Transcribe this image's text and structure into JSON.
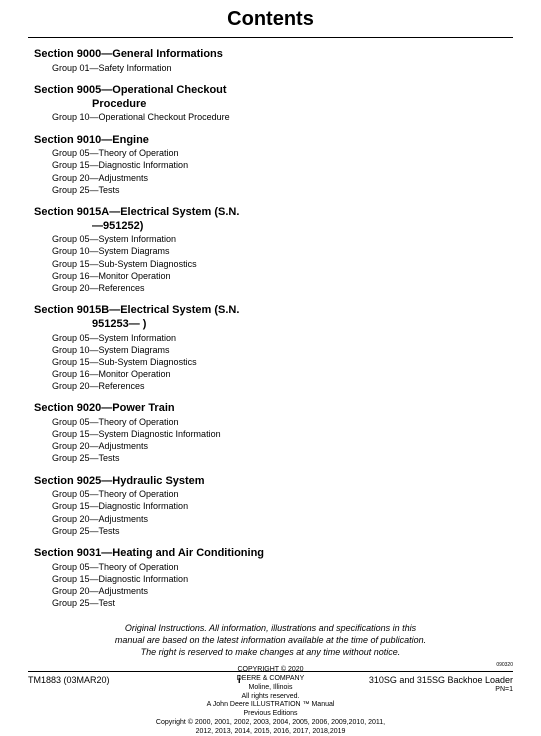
{
  "title": "Contents",
  "sections": [
    {
      "heading": "Section 9000—General Informations",
      "heading2": "",
      "groups": [
        "Group 01—Safety Information"
      ]
    },
    {
      "heading": "Section 9005—Operational Checkout",
      "heading2": "Procedure",
      "groups": [
        "Group 10—Operational Checkout Procedure"
      ]
    },
    {
      "heading": "Section 9010—Engine",
      "heading2": "",
      "groups": [
        "Group 05—Theory of Operation",
        "Group 15—Diagnostic Information",
        "Group 20—Adjustments",
        "Group 25—Tests"
      ]
    },
    {
      "heading": "Section 9015A—Electrical System (S.N.",
      "heading2": "—951252)",
      "groups": [
        "Group 05—System Information",
        "Group 10—System Diagrams",
        "Group 15—Sub-System Diagnostics",
        "Group 16—Monitor Operation",
        "Group 20—References"
      ]
    },
    {
      "heading": "Section 9015B—Electrical System (S.N.",
      "heading2": "951253— )",
      "groups": [
        "Group 05—System Information",
        "Group 10—System Diagrams",
        "Group 15—Sub-System Diagnostics",
        "Group 16—Monitor Operation",
        "Group 20—References"
      ]
    },
    {
      "heading": "Section 9020—Power Train",
      "heading2": "",
      "groups": [
        "Group 05—Theory of Operation",
        "Group 15—System Diagnostic Information",
        "Group 20—Adjustments",
        "Group 25—Tests"
      ]
    },
    {
      "heading": "Section 9025—Hydraulic System",
      "heading2": "",
      "groups": [
        "Group 05—Theory of Operation",
        "Group 15—Diagnostic Information",
        "Group 20—Adjustments",
        "Group 25—Tests"
      ]
    },
    {
      "heading": "Section 9031—Heating and Air Conditioning",
      "heading2": "",
      "groups": [
        "Group 05—Theory of Operation",
        "Group 15—Diagnostic Information",
        "Group 20—Adjustments",
        "Group 25—Test"
      ]
    }
  ],
  "disclaimer": {
    "l1": "Original Instructions. All information, illustrations and specifications in this",
    "l2": "manual are based on the latest information available at the time of publication.",
    "l3": "The right is reserved to make changes at any time without notice."
  },
  "copyright": {
    "l1": "COPYRIGHT © 2020",
    "l2": "DEERE & COMPANY",
    "l3": "Moline, Illinois",
    "l4": "All rights reserved.",
    "l5": "A John Deere ILLUSTRATION ™ Manual",
    "l6": "Previous Editions",
    "l7": "Copyright © 2000, 2001, 2002, 2003, 2004, 2005, 2006, 2009,2010, 2011,",
    "l8": "2012, 2013, 2014, 2015, 2016, 2017, 2018,2019"
  },
  "tiny": "090320",
  "footer": {
    "left": "TM1883 (03MAR20)",
    "center": "i",
    "right": "310SG and 315SG Backhoe Loader",
    "pn": "PN=1"
  }
}
